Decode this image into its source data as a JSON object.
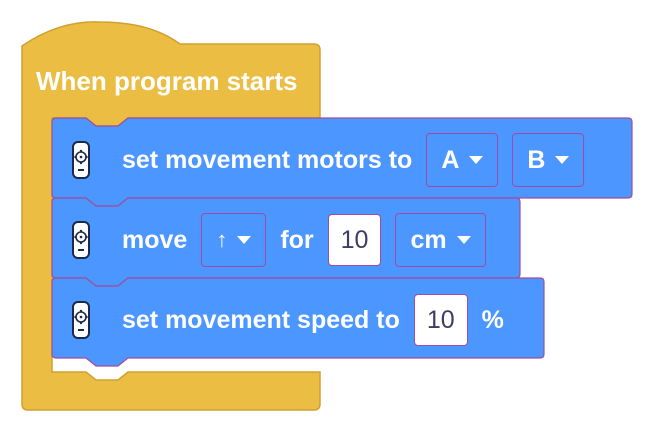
{
  "hat": {
    "label": "When program starts"
  },
  "blocks": [
    {
      "icon": "motor-pair-icon",
      "label": "set movement motors to",
      "dropdowns": [
        "A",
        "B"
      ]
    },
    {
      "icon": "motor-pair-icon",
      "label": "move",
      "direction": "↑",
      "for_label": "for",
      "amount": "10",
      "unit": "cm"
    },
    {
      "icon": "motor-pair-icon",
      "label": "set movement speed to",
      "speed": "10",
      "suffix": "%"
    }
  ],
  "colors": {
    "hat": "#ebbd42",
    "hat_border": "#cfa132",
    "motion": "#4c97ff",
    "motion_border": "#a04d9f",
    "white": "#ffffff"
  }
}
